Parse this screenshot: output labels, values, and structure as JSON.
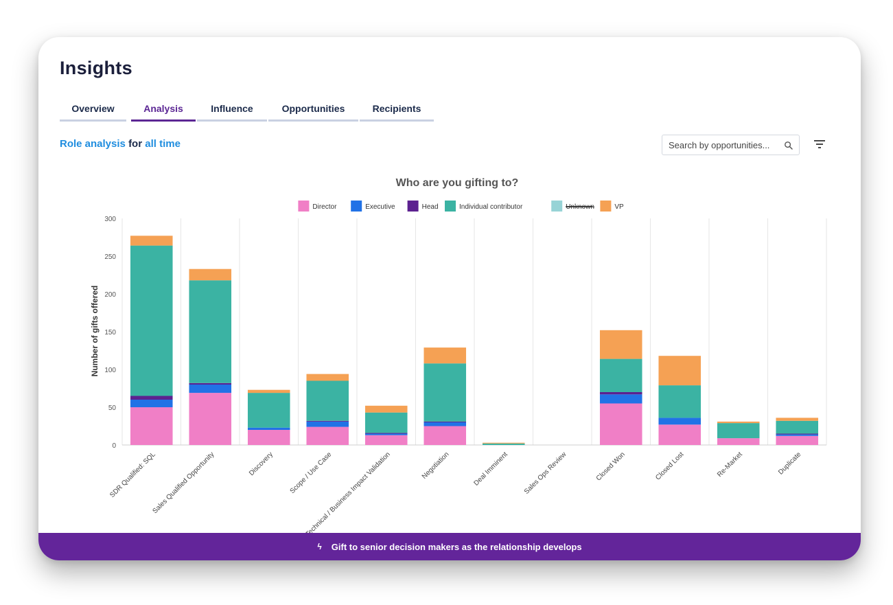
{
  "page": {
    "title": "Insights"
  },
  "tabs": [
    {
      "label": "Overview",
      "active": false
    },
    {
      "label": "Analysis",
      "active": true
    },
    {
      "label": "Influence",
      "active": false
    },
    {
      "label": "Opportunities",
      "active": false
    },
    {
      "label": "Recipients",
      "active": false
    }
  ],
  "role_heading": {
    "prefix": "Role analysis",
    "middle": "for",
    "suffix": "all time"
  },
  "search": {
    "placeholder": "Search by opportunities..."
  },
  "icons": {
    "search": "search-icon",
    "filter": "filter-icon",
    "bolt": "bolt-icon"
  },
  "colors": {
    "accent": "#5b2694",
    "link": "#1f8ddf",
    "banner": "#63259a"
  },
  "banner": {
    "text": "Gift to senior decision makers as the relationship develops"
  },
  "chart_data": {
    "type": "bar",
    "stacked": true,
    "title": "Who are you gifting to?",
    "xlabel": "",
    "ylabel": "Number of gifts offered",
    "ylim": [
      0,
      300
    ],
    "yticks": [
      0,
      50,
      100,
      150,
      200,
      250,
      300
    ],
    "grid": "vertical",
    "legend": "top-center",
    "categories": [
      "SDR Qualified: SQL",
      "Sales Qualified Opportunity",
      "Discovery",
      "Scope / Use Case",
      "Technical / Business Impact Validation",
      "Negotiation",
      "Deal Imminent",
      "Sales Ops Review",
      "Closed Won",
      "Closed Lost",
      "Re-Market",
      "Duplicate"
    ],
    "series": [
      {
        "name": "Director",
        "color": "#f07fc6",
        "values": [
          50,
          69,
          20,
          24,
          13,
          25,
          0,
          0,
          55,
          27,
          9,
          12
        ]
      },
      {
        "name": "Executive",
        "color": "#2172e6",
        "values": [
          10,
          11,
          3,
          7,
          2,
          5,
          0,
          0,
          12,
          9,
          0,
          2
        ]
      },
      {
        "name": "Head",
        "color": "#5c2190",
        "values": [
          5,
          2,
          0,
          1,
          1,
          1,
          0,
          0,
          3,
          0,
          0,
          1
        ]
      },
      {
        "name": "Individual contributor",
        "color": "#3bb3a3",
        "values": [
          199,
          136,
          46,
          53,
          27,
          77,
          2,
          0,
          44,
          43,
          20,
          17
        ]
      },
      {
        "name": "Unknown",
        "color": "#97d3d6",
        "hidden": true,
        "values": [
          0,
          0,
          0,
          0,
          0,
          0,
          0,
          0,
          0,
          0,
          0,
          0
        ]
      },
      {
        "name": "VP",
        "color": "#f5a154",
        "values": [
          13,
          15,
          4,
          9,
          9,
          21,
          1,
          0,
          38,
          39,
          2,
          4
        ]
      }
    ]
  }
}
